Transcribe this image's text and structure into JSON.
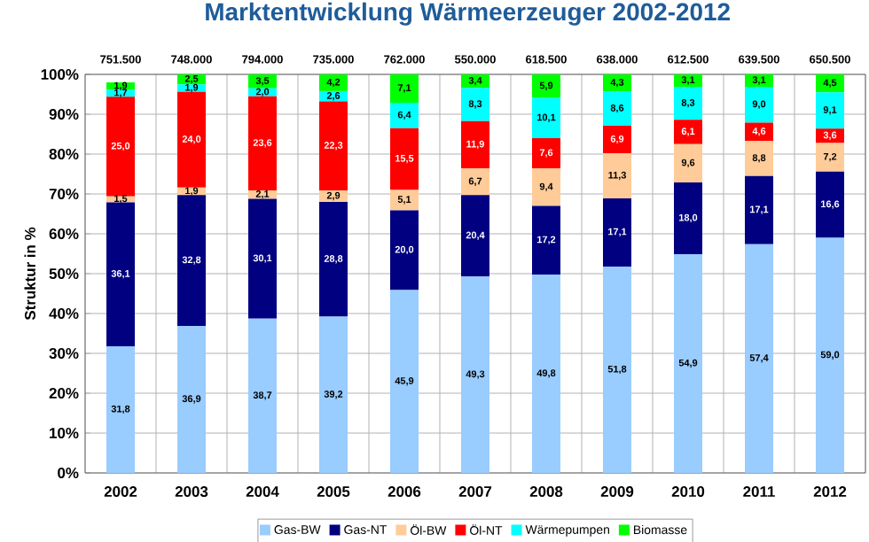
{
  "chart_data": {
    "type": "bar",
    "stacked": true,
    "title": "Marktentwicklung Wärmeerzeuger 2002-2012",
    "ylabel": "Struktur in %",
    "categories": [
      "2002",
      "2003",
      "2004",
      "2005",
      "2006",
      "2007",
      "2008",
      "2009",
      "2010",
      "2011",
      "2012"
    ],
    "annotations": [
      {
        "text": "751.500",
        "x": "2002",
        "y": 100
      },
      {
        "text": "748.000",
        "x": "2003",
        "y": 100
      },
      {
        "text": "794.000",
        "x": "2004",
        "y": 100
      },
      {
        "text": "735.000",
        "x": "2005",
        "y": 100
      },
      {
        "text": "762.000",
        "x": "2006",
        "y": 100
      },
      {
        "text": "550.000",
        "x": "2007",
        "y": 100
      },
      {
        "text": "618.500",
        "x": "2008",
        "y": 100
      },
      {
        "text": "638.000",
        "x": "2009",
        "y": 100
      },
      {
        "text": "612.500",
        "x": "2010",
        "y": 100
      },
      {
        "text": "639.500",
        "x": "2011",
        "y": 100
      },
      {
        "text": "650.500",
        "x": "2012",
        "y": 100
      }
    ],
    "series": [
      {
        "name": "Gas-BW",
        "color": "#99ccff",
        "values": [
          31.8,
          36.9,
          38.7,
          39.2,
          45.9,
          49.3,
          49.8,
          51.8,
          54.9,
          57.4,
          59.0
        ],
        "value_labels": [
          "31,8",
          "36,9",
          "38,7",
          "39,2",
          "45,9",
          "49,3",
          "49,8",
          "51,8",
          "54,9",
          "57,4",
          "59,0"
        ]
      },
      {
        "name": "Gas-NT",
        "color": "#000080",
        "values": [
          36.1,
          32.8,
          30.1,
          28.8,
          20.0,
          20.4,
          17.2,
          17.1,
          18.0,
          17.1,
          16.6
        ],
        "value_labels": [
          "36,1",
          "32,8",
          "30,1",
          "28,8",
          "20,0",
          "20,4",
          "17,2",
          "17,1",
          "18,0",
          "17,1",
          "16,6"
        ]
      },
      {
        "name": "Öl-BW",
        "color": "#ffcc99",
        "values": [
          1.5,
          1.9,
          2.1,
          2.9,
          5.1,
          6.7,
          9.4,
          11.3,
          9.6,
          8.8,
          7.2
        ],
        "value_labels": [
          "1,5",
          "1,9",
          "2,1",
          "2,9",
          "5,1",
          "6,7",
          "9,4",
          "11,3",
          "9,6",
          "8,8",
          "7,2"
        ]
      },
      {
        "name": "Öl-NT",
        "color": "#ff0000",
        "values": [
          25.0,
          24.0,
          23.6,
          22.3,
          15.5,
          11.9,
          7.6,
          6.9,
          6.1,
          4.6,
          3.6
        ],
        "value_labels": [
          "25,0",
          "24,0",
          "23,6",
          "22,3",
          "15,5",
          "11,9",
          "7,6",
          "6,9",
          "6,1",
          "4,6",
          "3,6"
        ]
      },
      {
        "name": "Wärmepumpen",
        "color": "#00ffff",
        "values": [
          1.7,
          1.9,
          2.0,
          2.6,
          6.4,
          8.3,
          10.1,
          8.6,
          8.3,
          9.0,
          9.1
        ],
        "value_labels": [
          "1,7",
          "1,9",
          "2,0",
          "2,6",
          "6,4",
          "8,3",
          "10,1",
          "8,6",
          "8,3",
          "9,0",
          "9,1"
        ]
      },
      {
        "name": "Biomasse",
        "color": "#00ff00",
        "values": [
          1.9,
          2.5,
          3.5,
          4.2,
          7.1,
          3.4,
          5.9,
          4.3,
          3.1,
          3.1,
          4.5
        ],
        "value_labels": [
          "1,9",
          "2,5",
          "3,5",
          "4,2",
          "7,1",
          "3,4",
          "5,9",
          "4,3",
          "3,1",
          "3,1",
          "4,5"
        ]
      }
    ],
    "ylim": [
      0,
      100
    ],
    "yticks": [
      {
        "value": 0,
        "label": "0%"
      },
      {
        "value": 10,
        "label": "10%"
      },
      {
        "value": 20,
        "label": "20%"
      },
      {
        "value": 30,
        "label": "30%"
      },
      {
        "value": 40,
        "label": "40%"
      },
      {
        "value": 50,
        "label": "50%"
      },
      {
        "value": 60,
        "label": "60%"
      },
      {
        "value": 70,
        "label": "70%"
      },
      {
        "value": 80,
        "label": "80%"
      },
      {
        "value": 90,
        "label": "90%"
      },
      {
        "value": 100,
        "label": "100%"
      }
    ],
    "grid": true,
    "legend": "bottom"
  }
}
